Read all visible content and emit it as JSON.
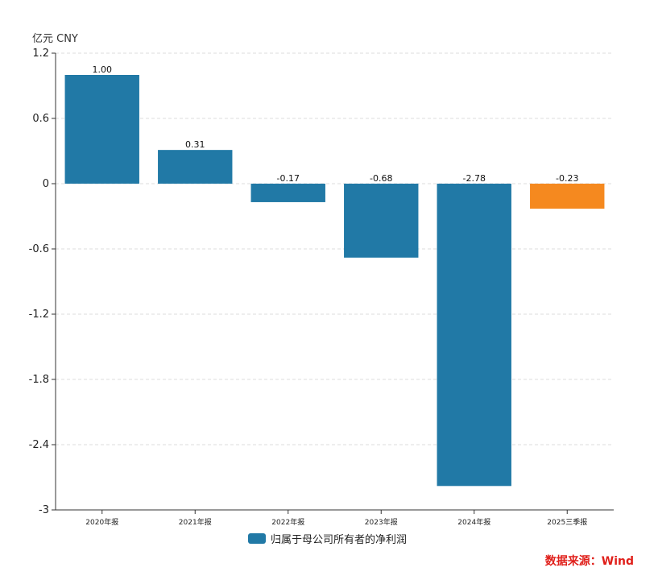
{
  "unit_label": "亿元  CNY",
  "source_text": "数据来源：Wind",
  "colors": {
    "primary": "#2179a6",
    "highlight": "#f5891f"
  },
  "chart_data": {
    "type": "bar",
    "categories": [
      "2020年报",
      "2021年报",
      "2022年报",
      "2023年报",
      "2024年报",
      "2025三季报"
    ],
    "series": [
      {
        "name": "归属于母公司所有者的净利润",
        "values": [
          1.0,
          0.31,
          -0.17,
          -0.68,
          -2.78,
          -0.23
        ],
        "labels": [
          "1.00",
          "0.31",
          "-0.17",
          "-0.68",
          "-2.78",
          "-0.23"
        ]
      }
    ],
    "highlight_index": 5,
    "ylim": [
      -3,
      1.2
    ],
    "yticks": [
      1.2,
      0.6,
      0,
      -0.6,
      -1.2,
      -1.8,
      -2.4,
      -3
    ],
    "ytick_labels": [
      "1.2",
      "0.6",
      "0",
      "-0.6",
      "-1.2",
      "-1.8",
      "-2.4",
      "-3"
    ],
    "grid": true,
    "legend_position": "bottom-center"
  }
}
